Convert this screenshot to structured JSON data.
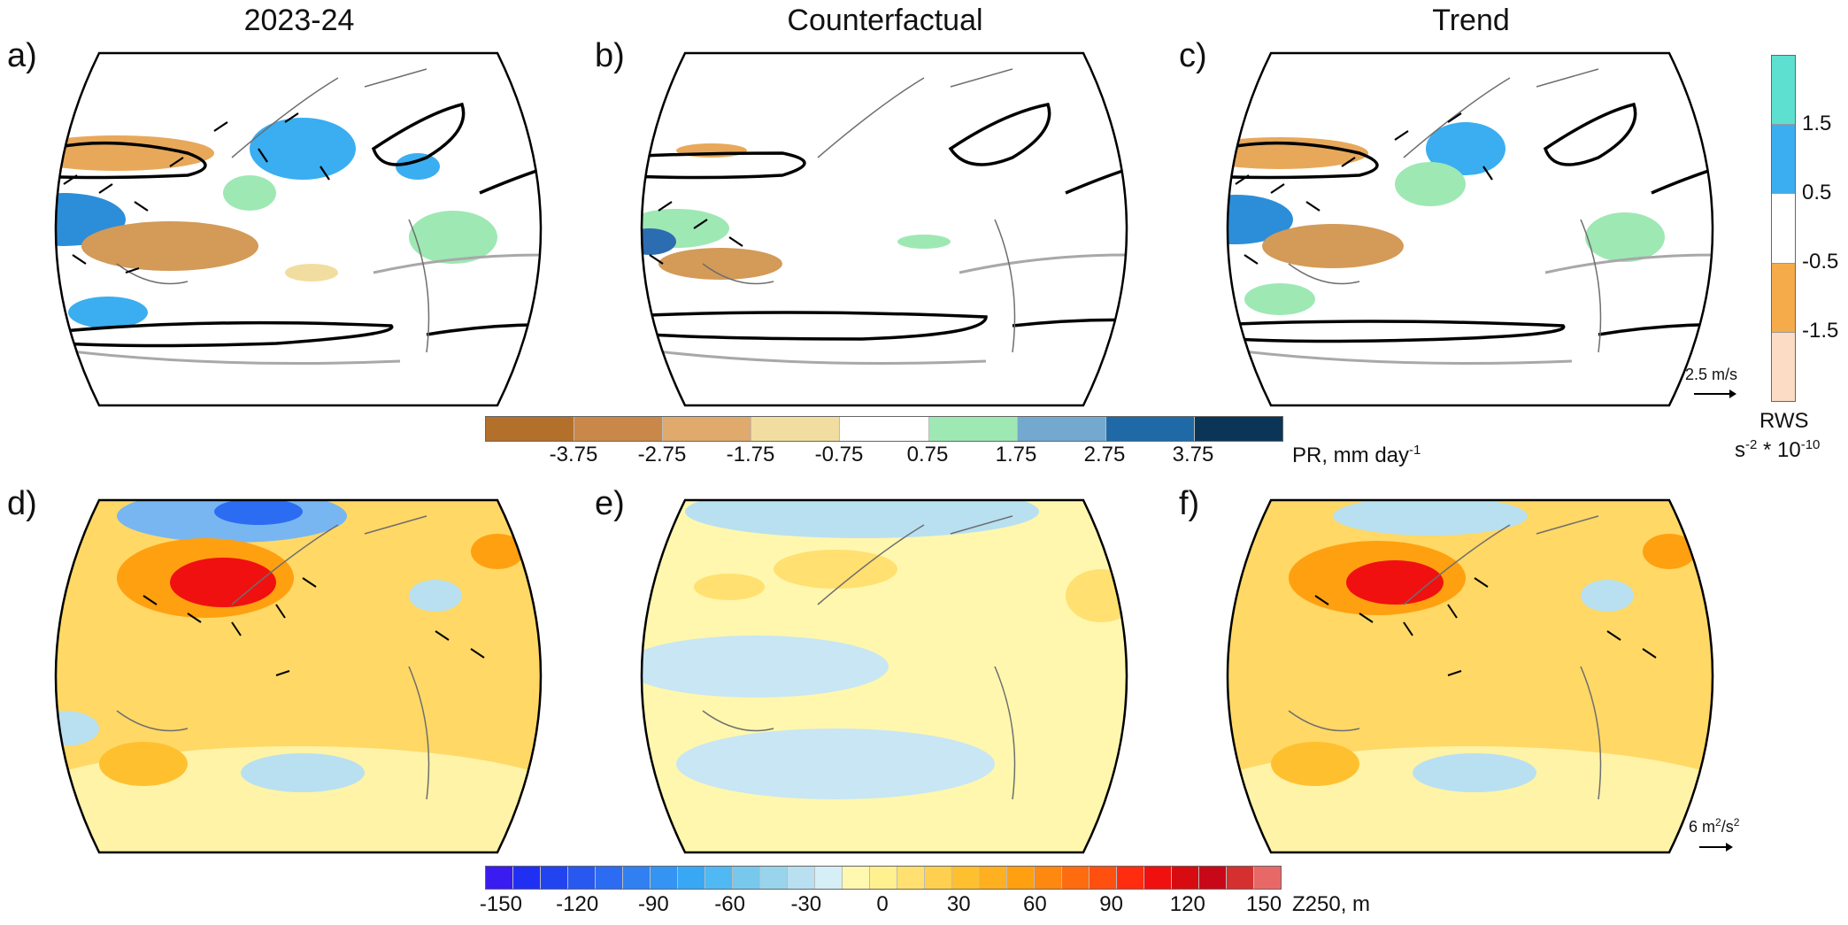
{
  "columns": [
    {
      "title": "2023-24"
    },
    {
      "title": "Counterfactual"
    },
    {
      "title": "Trend"
    }
  ],
  "panels": [
    {
      "label": "a)"
    },
    {
      "label": "b)"
    },
    {
      "label": "c)"
    },
    {
      "label": "d)"
    },
    {
      "label": "e)"
    },
    {
      "label": "f)"
    }
  ],
  "pr_colorbar": {
    "label": "PR, mm day",
    "label_sup": "-1",
    "ticks": [
      "-3.75",
      "-2.75",
      "-1.75",
      "-0.75",
      "0.75",
      "1.75",
      "2.75",
      "3.75"
    ],
    "colors": [
      "#b3702b",
      "#c9884a",
      "#dfaa6b",
      "#f2dda0",
      "#ffffff",
      "#9ee8b4",
      "#74a9cf",
      "#1f6aa6",
      "#0b3556"
    ]
  },
  "rws_colorbar": {
    "label": "RWS",
    "units_base": "s",
    "units_exp1": "-2",
    "units_mid": " * 10",
    "units_exp2": "-10",
    "ticks": [
      "1.5",
      "0.5",
      "-0.5",
      "-1.5"
    ],
    "colors": [
      "#5de0d0",
      "#3aaef0",
      "#ffffff",
      "#f5ab4a",
      "#fcdcc4"
    ]
  },
  "z250_colorbar": {
    "label": "Z250, m",
    "ticks": [
      "-150",
      "-120",
      "-90",
      "-60",
      "-30",
      "0",
      "30",
      "60",
      "90",
      "120",
      "150"
    ],
    "colors": [
      "#3a1cf0",
      "#2030f2",
      "#2244f0",
      "#2858f0",
      "#2c6cf2",
      "#3080f2",
      "#3494f4",
      "#38a8f4",
      "#50b8f2",
      "#78c8ee",
      "#98d4ec",
      "#b8e0f0",
      "#d6eef6",
      "#fff8b0",
      "#fff090",
      "#ffe070",
      "#ffd050",
      "#ffc030",
      "#ffb020",
      "#ffa010",
      "#ff8810",
      "#ff6c10",
      "#ff5010",
      "#ff2c10",
      "#f01010",
      "#d80c10",
      "#c80818",
      "#d43030",
      "#e86868"
    ]
  },
  "wind_scale": {
    "value": "2.5 m/s"
  },
  "flux_scale": {
    "value": "6 m",
    "sup1": "2",
    "mid": "/s",
    "sup2": "2"
  }
}
